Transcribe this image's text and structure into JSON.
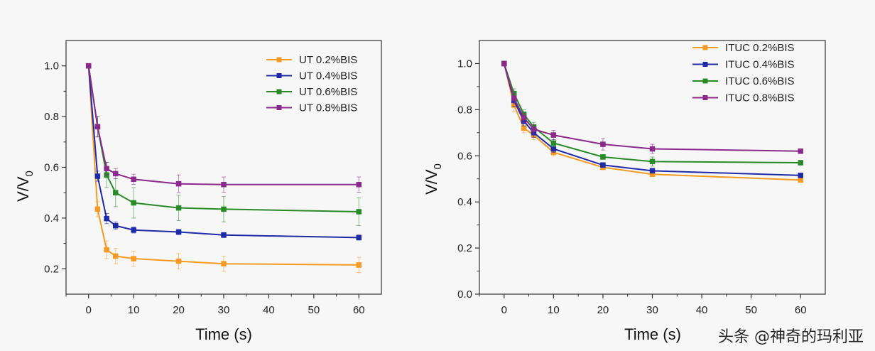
{
  "chart_data": [
    {
      "type": "line",
      "title": "",
      "xlabel": "Time (s)",
      "ylabel": "V/V",
      "ylabel_sub": "0",
      "xlim": [
        -5,
        65
      ],
      "ylim": [
        0.1,
        1.1
      ],
      "xticks": [
        "0",
        "10",
        "20",
        "30",
        "40",
        "50",
        "60"
      ],
      "yticks": [
        "0.2",
        "0.4",
        "0.6",
        "0.8",
        "1.0"
      ],
      "x": [
        0,
        2,
        4,
        6,
        10,
        20,
        30,
        60
      ],
      "legend_position": "top-right",
      "series": [
        {
          "name": "UT 0.2%BIS",
          "color": "#f59a23",
          "values": [
            1.0,
            0.435,
            0.275,
            0.25,
            0.24,
            0.23,
            0.22,
            0.215
          ],
          "errors": [
            0,
            0.03,
            0.035,
            0.03,
            0.03,
            0.03,
            0.03,
            0.03
          ]
        },
        {
          "name": "UT 0.4%BIS",
          "color": "#1f2aa8",
          "values": [
            1.0,
            0.565,
            0.398,
            0.37,
            0.353,
            0.345,
            0.333,
            0.323
          ],
          "errors": [
            0,
            0.02,
            0.02,
            0.015,
            0.012,
            0.01,
            0.01,
            0.01
          ]
        },
        {
          "name": "UT 0.6%BIS",
          "color": "#2a8a2a",
          "values": [
            1.0,
            0.76,
            0.57,
            0.5,
            0.46,
            0.44,
            0.435,
            0.425
          ],
          "errors": [
            0,
            0.04,
            0.05,
            0.055,
            0.06,
            0.05,
            0.05,
            0.055
          ]
        },
        {
          "name": "UT 0.8%BIS",
          "color": "#8a2a8a",
          "values": [
            1.0,
            0.76,
            0.595,
            0.575,
            0.553,
            0.535,
            0.532,
            0.532
          ],
          "errors": [
            0,
            0.04,
            0.025,
            0.02,
            0.02,
            0.035,
            0.03,
            0.03
          ]
        }
      ]
    },
    {
      "type": "line",
      "title": "",
      "xlabel": "Time (s)",
      "ylabel": "V/V",
      "ylabel_sub": "0",
      "xlim": [
        -5,
        65
      ],
      "ylim": [
        0.0,
        1.1
      ],
      "xticks": [
        "0",
        "10",
        "20",
        "30",
        "40",
        "50",
        "60"
      ],
      "yticks": [
        "0.0",
        "0.2",
        "0.4",
        "0.6",
        "0.8",
        "1.0"
      ],
      "x": [
        0,
        2,
        4,
        6,
        10,
        20,
        30,
        60
      ],
      "legend_position": "top-right",
      "series": [
        {
          "name": "ITUC 0.2%BIS",
          "color": "#f59a23",
          "values": [
            1.0,
            0.82,
            0.72,
            0.69,
            0.615,
            0.55,
            0.52,
            0.495
          ],
          "errors": [
            0,
            0.03,
            0.02,
            0.02,
            0.015,
            0.01,
            0.01,
            0.01
          ]
        },
        {
          "name": "ITUC 0.4%BIS",
          "color": "#1f2aa8",
          "values": [
            1.0,
            0.84,
            0.75,
            0.7,
            0.63,
            0.56,
            0.535,
            0.515
          ],
          "errors": [
            0,
            0.025,
            0.02,
            0.02,
            0.015,
            0.01,
            0.01,
            0.01
          ]
        },
        {
          "name": "ITUC 0.6%BIS",
          "color": "#2a8a2a",
          "values": [
            1.0,
            0.87,
            0.78,
            0.725,
            0.655,
            0.595,
            0.575,
            0.57
          ],
          "errors": [
            0,
            0.02,
            0.02,
            0.02,
            0.015,
            0.01,
            0.02,
            0.01
          ]
        },
        {
          "name": "ITUC 0.8%BIS",
          "color": "#8a2a8a",
          "values": [
            1.0,
            0.85,
            0.765,
            0.715,
            0.69,
            0.65,
            0.63,
            0.62
          ],
          "errors": [
            0,
            0.02,
            0.02,
            0.02,
            0.02,
            0.025,
            0.02,
            0.01
          ]
        }
      ]
    }
  ],
  "watermark": "头条 @神奇的玛利亚"
}
